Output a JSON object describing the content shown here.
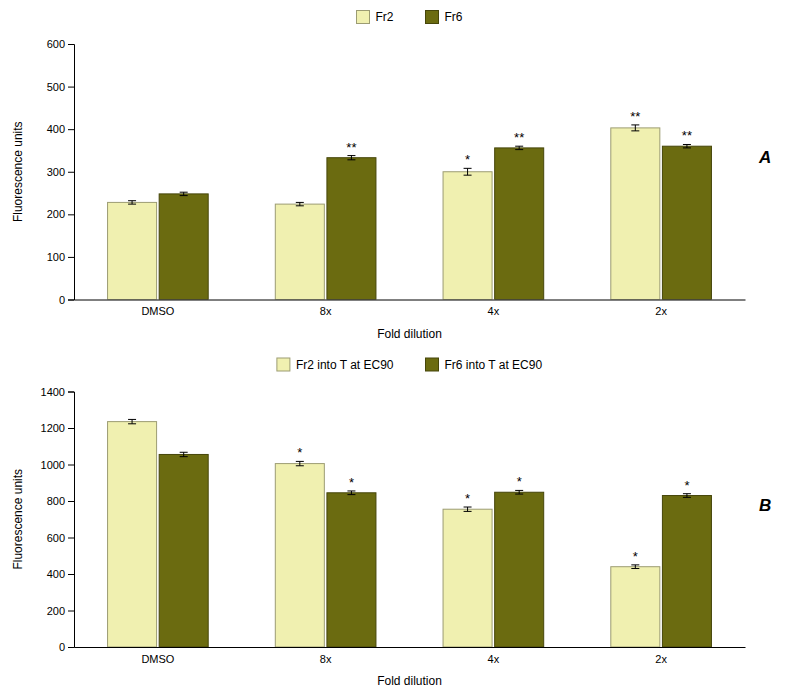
{
  "chart_data": [
    {
      "type": "bar",
      "title": "A",
      "categories": [
        "DMSO",
        "8x",
        "4x",
        "2x"
      ],
      "series": [
        {
          "name": "Fr2",
          "color": "#f0f0b0",
          "values": [
            228,
            224,
            300,
            403
          ],
          "errors": [
            4,
            4,
            8,
            7
          ],
          "annotations": [
            null,
            null,
            "*",
            "**"
          ]
        },
        {
          "name": "Fr6",
          "color": "#6b6b10",
          "values": [
            248,
            333,
            356,
            360
          ],
          "errors": [
            4,
            5,
            4,
            4
          ],
          "annotations": [
            null,
            "**",
            "**",
            "**"
          ]
        }
      ],
      "x_label": "Fold dilution",
      "y_label": "Fluorescence units",
      "ylim": [
        0,
        600
      ],
      "yticks": [
        0,
        100,
        200,
        300,
        400,
        500,
        600
      ],
      "legend": "top"
    },
    {
      "type": "bar",
      "title": "B",
      "categories": [
        "DMSO",
        "8x",
        "4x",
        "2x"
      ],
      "series": [
        {
          "name": "Fr2 into T at EC90",
          "color": "#f0f0b0",
          "values": [
            1235,
            1005,
            755,
            440
          ],
          "errors": [
            12,
            12,
            12,
            10
          ],
          "annotations": [
            null,
            "*",
            "*",
            "*"
          ]
        },
        {
          "name": "Fr6 into T at EC90",
          "color": "#6b6b10",
          "values": [
            1055,
            845,
            848,
            830
          ],
          "errors": [
            12,
            10,
            10,
            10
          ],
          "annotations": [
            null,
            "*",
            "*",
            "*"
          ]
        }
      ],
      "x_label": "Fold dilution",
      "y_label": "Fluorescence units",
      "ylim": [
        0,
        1400
      ],
      "yticks": [
        0,
        200,
        400,
        600,
        800,
        1000,
        1200,
        1400
      ],
      "legend": "top"
    }
  ]
}
